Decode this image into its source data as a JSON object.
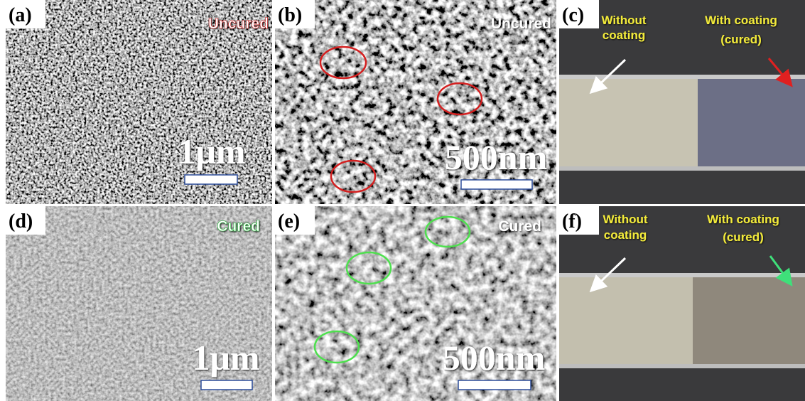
{
  "panels": [
    {
      "label": "(a)",
      "annotation": "Uncured",
      "scale_bar": "1μm"
    },
    {
      "label": "(b)",
      "annotation": "Uncured",
      "scale_bar": "500nm"
    },
    {
      "label": "(c)",
      "left_caption": [
        "Without",
        "coating"
      ],
      "right_caption": [
        "With coating",
        "(cured)"
      ]
    },
    {
      "label": "(d)",
      "annotation": "Cured",
      "scale_bar": "1μm"
    },
    {
      "label": "(e)",
      "annotation": "Cured",
      "scale_bar": "500nm"
    },
    {
      "label": "(f)",
      "left_caption": [
        "Without",
        "coating"
      ],
      "right_caption": [
        "With coating",
        "(cured)"
      ]
    }
  ]
}
